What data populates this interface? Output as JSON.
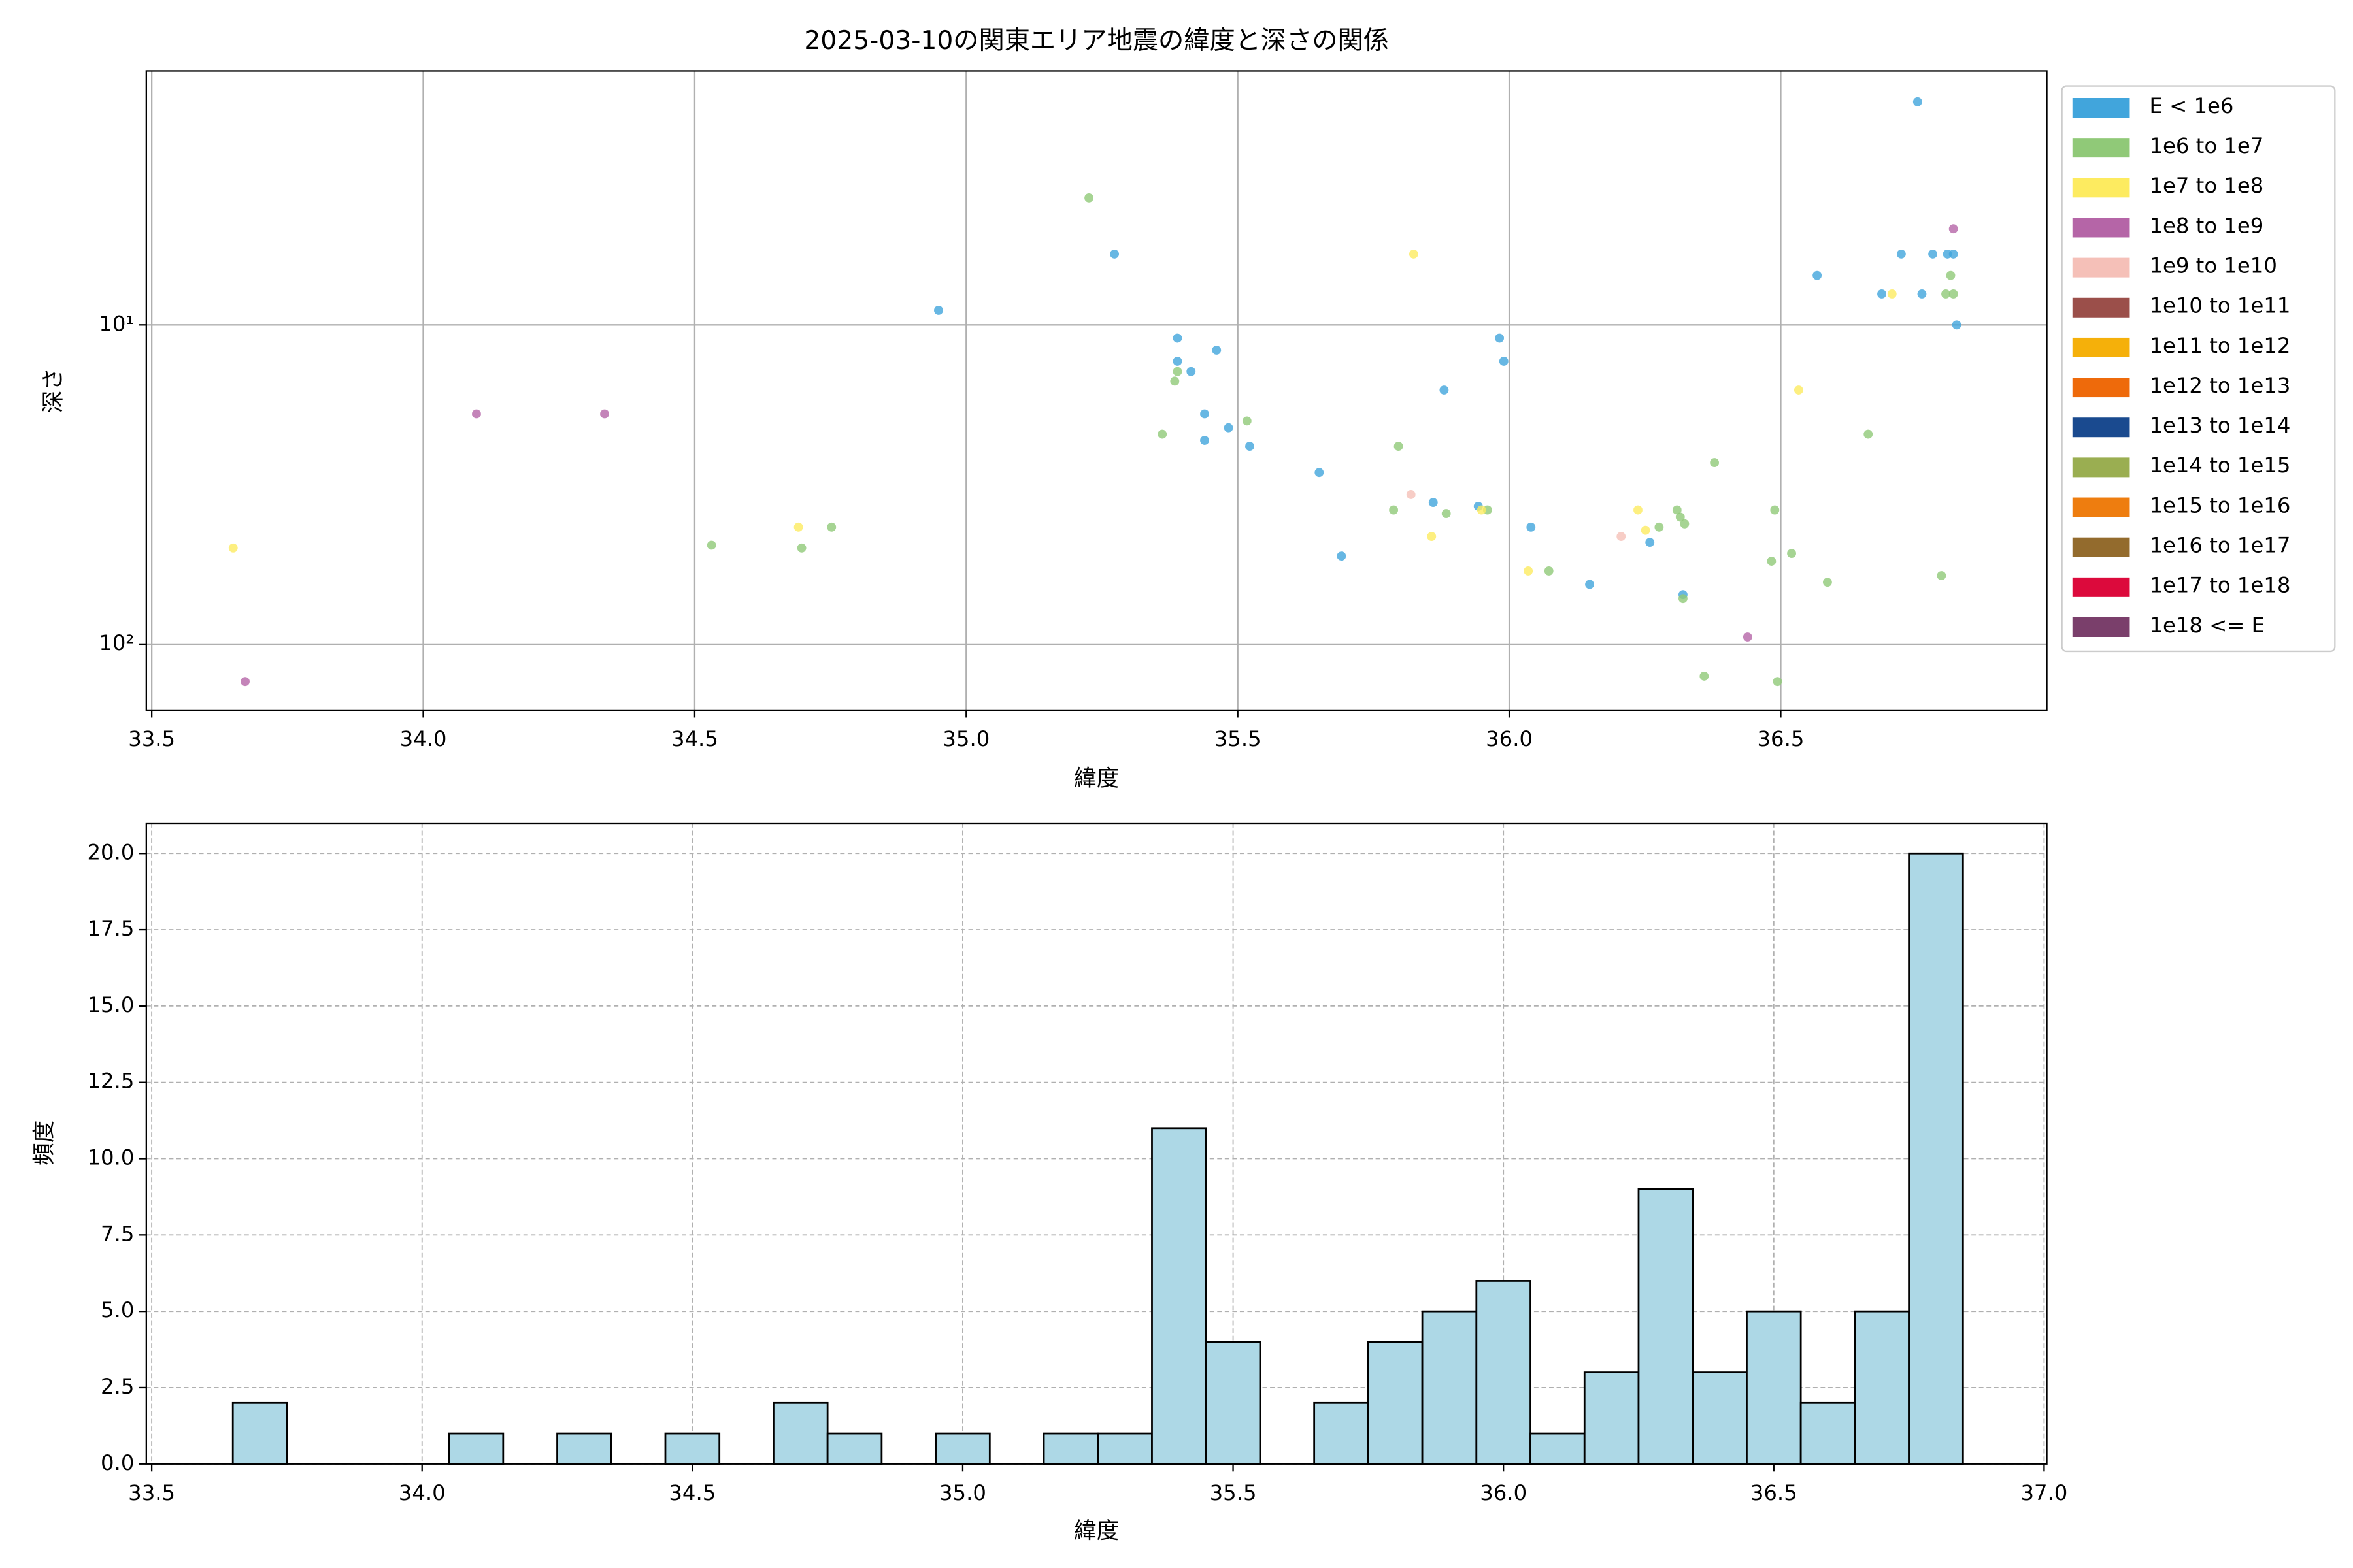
{
  "chart_data": [
    {
      "type": "scatter",
      "title": "2025-03-10の関東エリア地震の緯度と深さの関係",
      "xlabel": "緯度",
      "ylabel": "深さ",
      "xlim": [
        33.49,
        36.99
      ],
      "ylim": [
        1.6,
        161
      ],
      "yscale": "log",
      "yinvert": true,
      "grid": true,
      "legend": "outside-right",
      "xticks": [
        33.5,
        {
          "value": 34.0,
          "label": "34.0"
        },
        34.5,
        {
          "value": 35.0,
          "label": "35.0"
        },
        35.5,
        {
          "value": 36.0,
          "label": "36.0"
        },
        36.5
      ],
      "yticks": [
        {
          "value": 10,
          "label": "10¹"
        },
        {
          "value": 100,
          "label": "10²"
        }
      ],
      "series": [
        {
          "name": "E < 1e6",
          "color": "#41a5dc",
          "x": [
            34.949,
            35.273,
            35.389,
            35.389,
            35.414,
            35.461,
            35.439,
            35.439,
            35.483,
            35.522,
            35.65,
            35.691,
            35.86,
            35.88,
            35.943,
            35.982,
            35.99,
            36.04,
            36.148,
            36.259,
            36.32,
            36.567,
            36.722,
            36.752,
            36.76,
            36.78,
            36.807,
            36.818,
            36.824,
            36.686
          ],
          "y": [
            9,
            6,
            11,
            13,
            14,
            12,
            19,
            23,
            21,
            24,
            29,
            53,
            36,
            16,
            37,
            11,
            13,
            43,
            65,
            48,
            70,
            7,
            6,
            2,
            8,
            6,
            6,
            6,
            10,
            8
          ]
        },
        {
          "name": "1e6 to 1e7",
          "color": "#90c978",
          "x": [
            35.226,
            35.384,
            35.389,
            35.361,
            35.517,
            35.796,
            35.787,
            35.884,
            35.96,
            36.073,
            36.378,
            36.309,
            36.315,
            36.323,
            36.276,
            36.489,
            36.483,
            36.52,
            36.586,
            36.661,
            36.796,
            36.813,
            36.818,
            36.804,
            36.359,
            36.494,
            36.32,
            34.531,
            34.697,
            34.752
          ],
          "y": [
            4,
            15,
            14,
            22,
            20,
            24,
            38,
            39,
            38,
            59,
            27,
            38,
            40,
            42,
            43,
            38,
            55,
            52,
            64,
            22,
            61,
            7,
            8,
            8,
            126,
            131,
            72,
            49,
            50,
            43
          ]
        },
        {
          "name": "1e7 to 1e8",
          "color": "#fdeb60",
          "x": [
            33.65,
            34.691,
            35.824,
            35.857,
            35.949,
            36.035,
            36.237,
            36.251,
            36.533,
            36.705
          ],
          "y": [
            50,
            43,
            6,
            46,
            38,
            59,
            38,
            44,
            16,
            8
          ]
        },
        {
          "name": "1e8 to 1e9",
          "color": "#b565a7",
          "x": [
            33.672,
            34.098,
            34.334,
            36.439,
            36.818
          ],
          "y": [
            131,
            19,
            19,
            95,
            5
          ]
        },
        {
          "name": "1e9 to 1e10",
          "color": "#f5c0b8",
          "x": [
            35.819,
            36.206
          ],
          "y": [
            34,
            46
          ]
        },
        {
          "name": "1e10 to 1e11",
          "color": "#9b4f4a",
          "x": [],
          "y": []
        },
        {
          "name": "1e11 to 1e12",
          "color": "#f5b00a",
          "x": [],
          "y": []
        },
        {
          "name": "1e12 to 1e13",
          "color": "#ee6a0b",
          "x": [],
          "y": []
        },
        {
          "name": "1e13 to 1e14",
          "color": "#1a4a8f",
          "x": [],
          "y": []
        },
        {
          "name": "1e14 to 1e15",
          "color": "#9aae51",
          "x": [],
          "y": []
        },
        {
          "name": "1e15 to 1e16",
          "color": "#ee7d0f",
          "x": [],
          "y": []
        },
        {
          "name": "1e16 to 1e17",
          "color": "#936b2d",
          "x": [],
          "y": []
        },
        {
          "name": "1e17 to 1e18",
          "color": "#dc0a3c",
          "x": [],
          "y": []
        },
        {
          "name": "1e18 <= E",
          "color": "#7a3f6b",
          "x": [],
          "y": []
        }
      ]
    },
    {
      "type": "histogram",
      "xlabel": "緯度",
      "ylabel": "頻度",
      "color": "#add8e6",
      "edgecolor": "#000000",
      "grid": true,
      "xlim": [
        33.49,
        37.005
      ],
      "ylim": [
        0,
        20.99
      ],
      "xticks": [
        33.5,
        {
          "value": 34.0,
          "label": "34.0"
        },
        34.5,
        {
          "value": 35.0,
          "label": "35.0"
        },
        35.5,
        {
          "value": 36.0,
          "label": "36.0"
        },
        36.5,
        {
          "value": 37.0,
          "label": "37.0"
        }
      ],
      "yticks": [
        {
          "value": 0,
          "label": "0.0"
        },
        2.5,
        {
          "value": 5,
          "label": "5.0"
        },
        7.5,
        {
          "value": 10,
          "label": "10.0"
        },
        12.5,
        {
          "value": 15,
          "label": "15.0"
        },
        17.5,
        {
          "value": 20,
          "label": "20.0"
        }
      ],
      "bins": [
        33.65,
        33.75,
        33.85,
        33.95,
        34.05,
        34.15,
        34.25,
        34.35,
        34.45,
        34.55,
        34.65,
        34.75,
        34.85,
        34.95,
        35.05,
        35.15,
        35.25,
        35.35,
        35.45,
        35.55,
        35.65,
        35.75,
        35.85,
        35.95,
        36.05,
        36.15,
        36.25,
        36.35,
        36.45,
        36.55,
        36.65,
        36.75,
        36.85
      ],
      "counts": [
        2,
        0,
        0,
        0,
        1,
        0,
        1,
        0,
        1,
        0,
        2,
        1,
        0,
        1,
        0,
        1,
        1,
        11,
        4,
        0,
        2,
        4,
        5,
        6,
        1,
        3,
        9,
        3,
        5,
        2,
        5,
        20
      ]
    }
  ]
}
